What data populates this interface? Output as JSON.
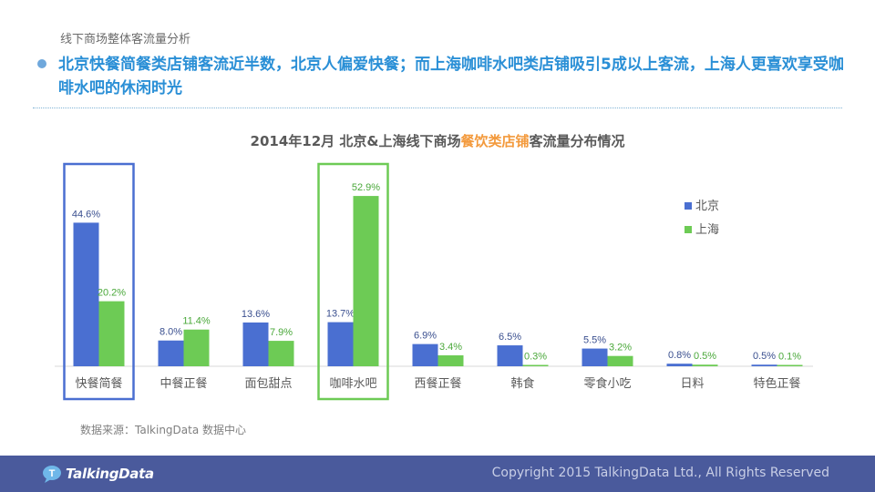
{
  "header": {
    "section_label": "线下商场整体客流量分析",
    "headline": "北京快餐简餐类店铺客流近半数，北京人偏爱快餐；而上海咖啡水吧类店铺吸引5成以上客流，上海人更喜欢享受咖啡水吧的休闲时光"
  },
  "chart_data": {
    "type": "bar",
    "title_parts": [
      "2014年12月  北京&上海线下商场",
      "餐饮类店铺",
      "客流量分布情况"
    ],
    "categories": [
      "快餐简餐",
      "中餐正餐",
      "面包甜点",
      "咖啡水吧",
      "西餐正餐",
      "韩食",
      "零食小吃",
      "日料",
      "特色正餐"
    ],
    "series": [
      {
        "name": "北京",
        "color": "#4a6fd1",
        "values": [
          44.6,
          8.0,
          13.6,
          13.7,
          6.9,
          6.5,
          5.5,
          0.8,
          0.5
        ],
        "labels": [
          "44.6%",
          "8.0%",
          "13.6%",
          "13.7%",
          "6.9%",
          "6.5%",
          "5.5%",
          "0.8%",
          "0.5%"
        ]
      },
      {
        "name": "上海",
        "color": "#6dcb55",
        "values": [
          20.2,
          11.4,
          7.9,
          52.9,
          3.4,
          0.3,
          3.2,
          0.5,
          0.1
        ],
        "labels": [
          "20.2%",
          "11.4%",
          "7.9%",
          "52.9%",
          "3.4%",
          "0.3%",
          "3.2%",
          "0.5%",
          "0.1%"
        ]
      }
    ],
    "ylim": [
      0,
      60
    ],
    "grid": false,
    "legend": "right",
    "highlights": [
      {
        "category": "快餐简餐",
        "color": "#4a6fd1"
      },
      {
        "category": "咖啡水吧",
        "color": "#6dcb55"
      }
    ]
  },
  "source_note": "数据来源：TalkingData 数据中心",
  "footer": {
    "logo_text": "TalkingData",
    "copyright": "Copyright 2015 TalkingData Ltd., All Rights Reserved"
  }
}
